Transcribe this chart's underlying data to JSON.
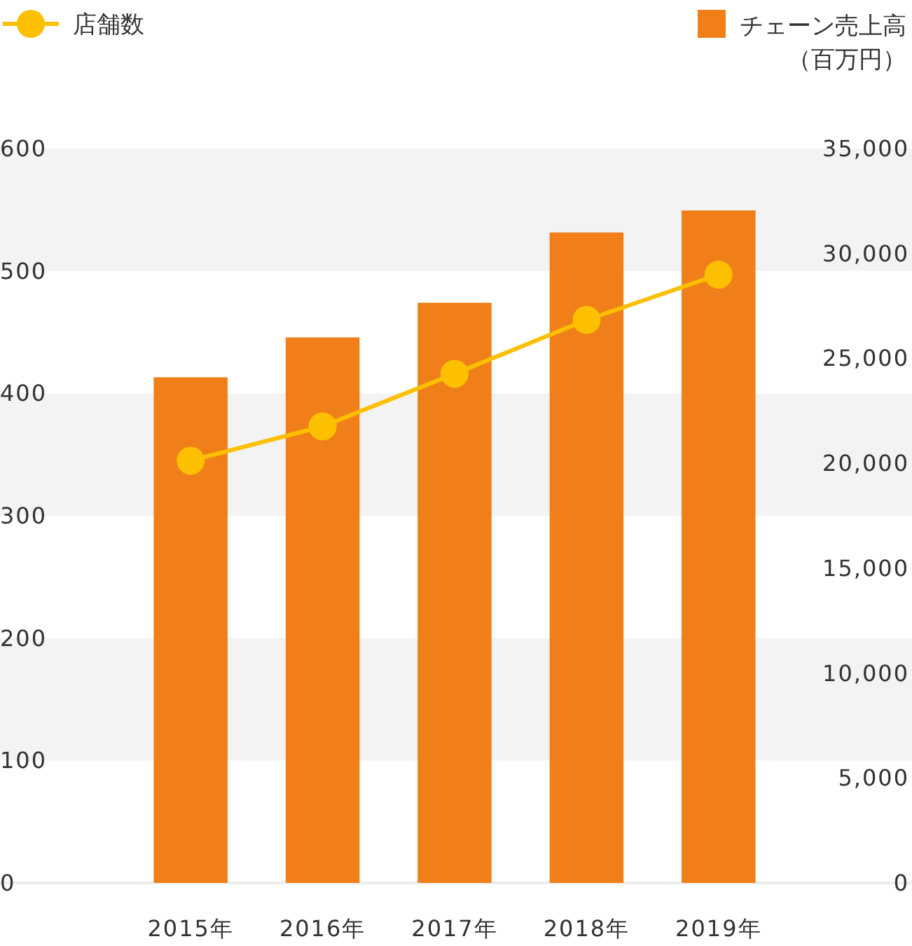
{
  "chart_data": {
    "type": "bar",
    "categories": [
      "2015年",
      "2016年",
      "2017年",
      "2018年",
      "2019年"
    ],
    "series": [
      {
        "name": "チェーン売上高",
        "type": "bar",
        "axis": "y2",
        "color": "#f07f19",
        "values": [
          24100,
          26000,
          27650,
          31000,
          32050
        ]
      },
      {
        "name": "店舗数",
        "type": "line",
        "axis": "y",
        "color": "#fcc000",
        "marker": "circle",
        "values": [
          345,
          373,
          416,
          460,
          497
        ]
      }
    ],
    "y2label": "（百万円）",
    "ylim": [
      0,
      600
    ],
    "yticks": [
      0,
      100,
      200,
      300,
      400,
      500,
      600
    ],
    "y2lim": [
      0,
      35000
    ],
    "y2ticks": [
      0,
      {
        "value": 5000,
        "label": "5,000"
      },
      {
        "value": 10000,
        "label": "10,000"
      },
      {
        "value": 15000,
        "label": "15,000"
      },
      {
        "value": 20000,
        "label": "20,000"
      },
      {
        "value": 25000,
        "label": "25,000"
      },
      {
        "value": 30000,
        "label": "30,000"
      },
      {
        "value": 35000,
        "label": "35,000"
      }
    ],
    "bands": [
      {
        "axis": "y",
        "from": 100,
        "to": 200,
        "color": "#f3f3f3"
      },
      {
        "axis": "y",
        "from": 300,
        "to": 400,
        "color": "#f3f3f3"
      },
      {
        "axis": "y",
        "from": 500,
        "to": 600,
        "color": "#f3f3f3"
      }
    ],
    "legend": "top",
    "grid": false
  }
}
